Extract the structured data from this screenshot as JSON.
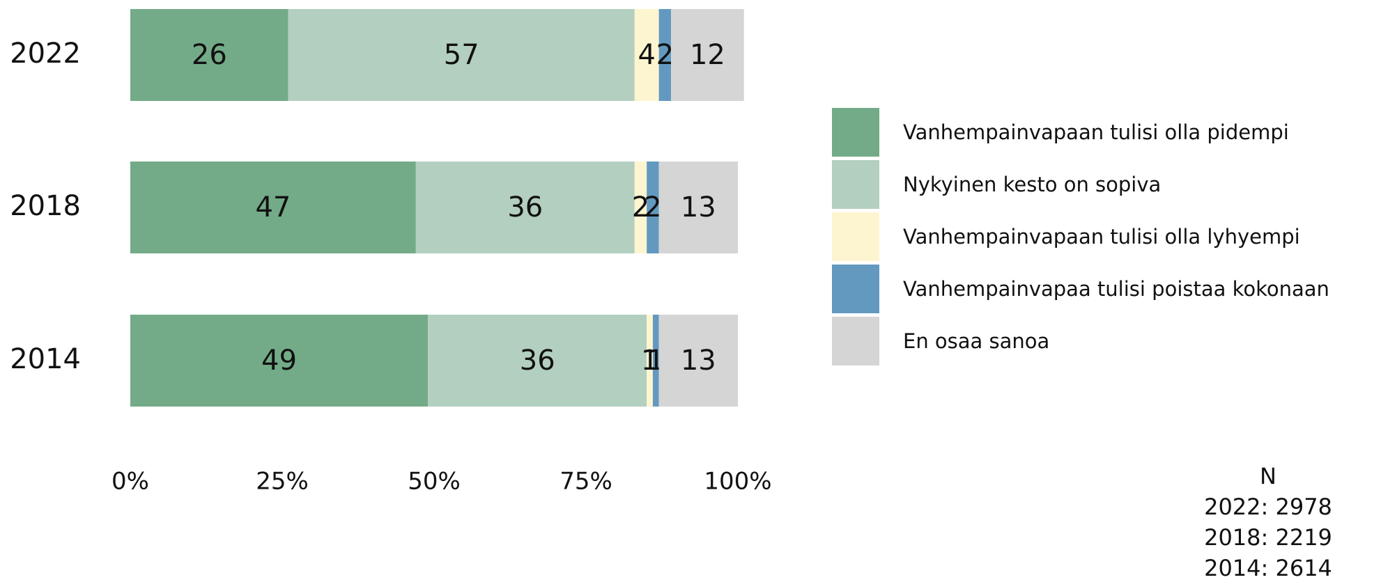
{
  "chart_data": {
    "type": "stacked_barh",
    "categories": [
      "2022",
      "2018",
      "2014"
    ],
    "series": [
      {
        "name": "Vanhempainvapaan tulisi olla pidempi",
        "color": "#73ab88",
        "values": [
          26,
          47,
          49
        ]
      },
      {
        "name": "Nykyinen kesto on sopiva",
        "color": "#b3cfbf",
        "values": [
          57,
          36,
          36
        ]
      },
      {
        "name": "Vanhempainvapaan tulisi olla lyhyempi",
        "color": "#fdf5cf",
        "values": [
          4,
          2,
          1
        ]
      },
      {
        "name": "Vanhempainvapaa tulisi poistaa kokonaan",
        "color": "#6399bf",
        "values": [
          2,
          2,
          1
        ]
      },
      {
        "name": "En osaa sanoa",
        "color": "#d5d5d5",
        "values": [
          12,
          13,
          13
        ]
      }
    ],
    "xlim": [
      0,
      100
    ],
    "xticks": [
      {
        "value": 0,
        "label": "0%"
      },
      {
        "value": 25,
        "label": "25%"
      },
      {
        "value": 50,
        "label": "50%"
      },
      {
        "value": 75,
        "label": "75%"
      },
      {
        "value": 100,
        "label": "100%"
      }
    ],
    "legend": "right",
    "annotations": [
      "N",
      "2022: 2978",
      "2018: 2219",
      "2014: 2614"
    ]
  }
}
